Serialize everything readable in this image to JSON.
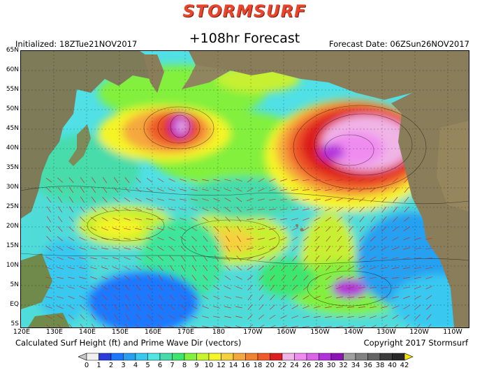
{
  "header": {
    "brand": "STORMSURF",
    "subtitle": "+108hr Forecast",
    "initialized": "Initialized: 18ZTue21NOV2017",
    "forecast_date": "Forecast Date: 06ZSun26NOV2017"
  },
  "axes": {
    "lat_labels": [
      "65N",
      "60N",
      "55N",
      "50N",
      "45N",
      "40N",
      "35N",
      "30N",
      "25N",
      "20N",
      "15N",
      "10N",
      "5N",
      "EQ",
      "5S"
    ],
    "lon_labels": [
      "120E",
      "130E",
      "140E",
      "150E",
      "160E",
      "170E",
      "180",
      "170W",
      "160W",
      "150W",
      "140W",
      "130W",
      "120W",
      "110W"
    ]
  },
  "footer": {
    "caption": "Calculated Surf Height (ft) and Prime Wave Dir (vectors)",
    "copyright": "Copyright 2017 Stormsurf"
  },
  "legend": {
    "labels": [
      "0",
      "1",
      "2",
      "3",
      "4",
      "5",
      "6",
      "7",
      "8",
      "9",
      "10",
      "12",
      "14",
      "16",
      "18",
      "20",
      "22",
      "24",
      "26",
      "28",
      "30",
      "32",
      "34",
      "36",
      "38",
      "40",
      "42"
    ],
    "colors": [
      "#f0f0f0",
      "#2c3cdc",
      "#1e78ff",
      "#28a0f0",
      "#38c8f0",
      "#50e6e6",
      "#46dcaa",
      "#3ce66e",
      "#82f03c",
      "#c8f532",
      "#f5f528",
      "#f5d23c",
      "#f5a83c",
      "#f08232",
      "#ee5a2a",
      "#dc1e1e",
      "#f0b4e6",
      "#f08cf0",
      "#dc64e6",
      "#b432dc",
      "#8c14b4",
      "#a0a0a0",
      "#828282",
      "#646464",
      "#3c3c3c",
      "#282828",
      "#f5e60a"
    ]
  }
}
